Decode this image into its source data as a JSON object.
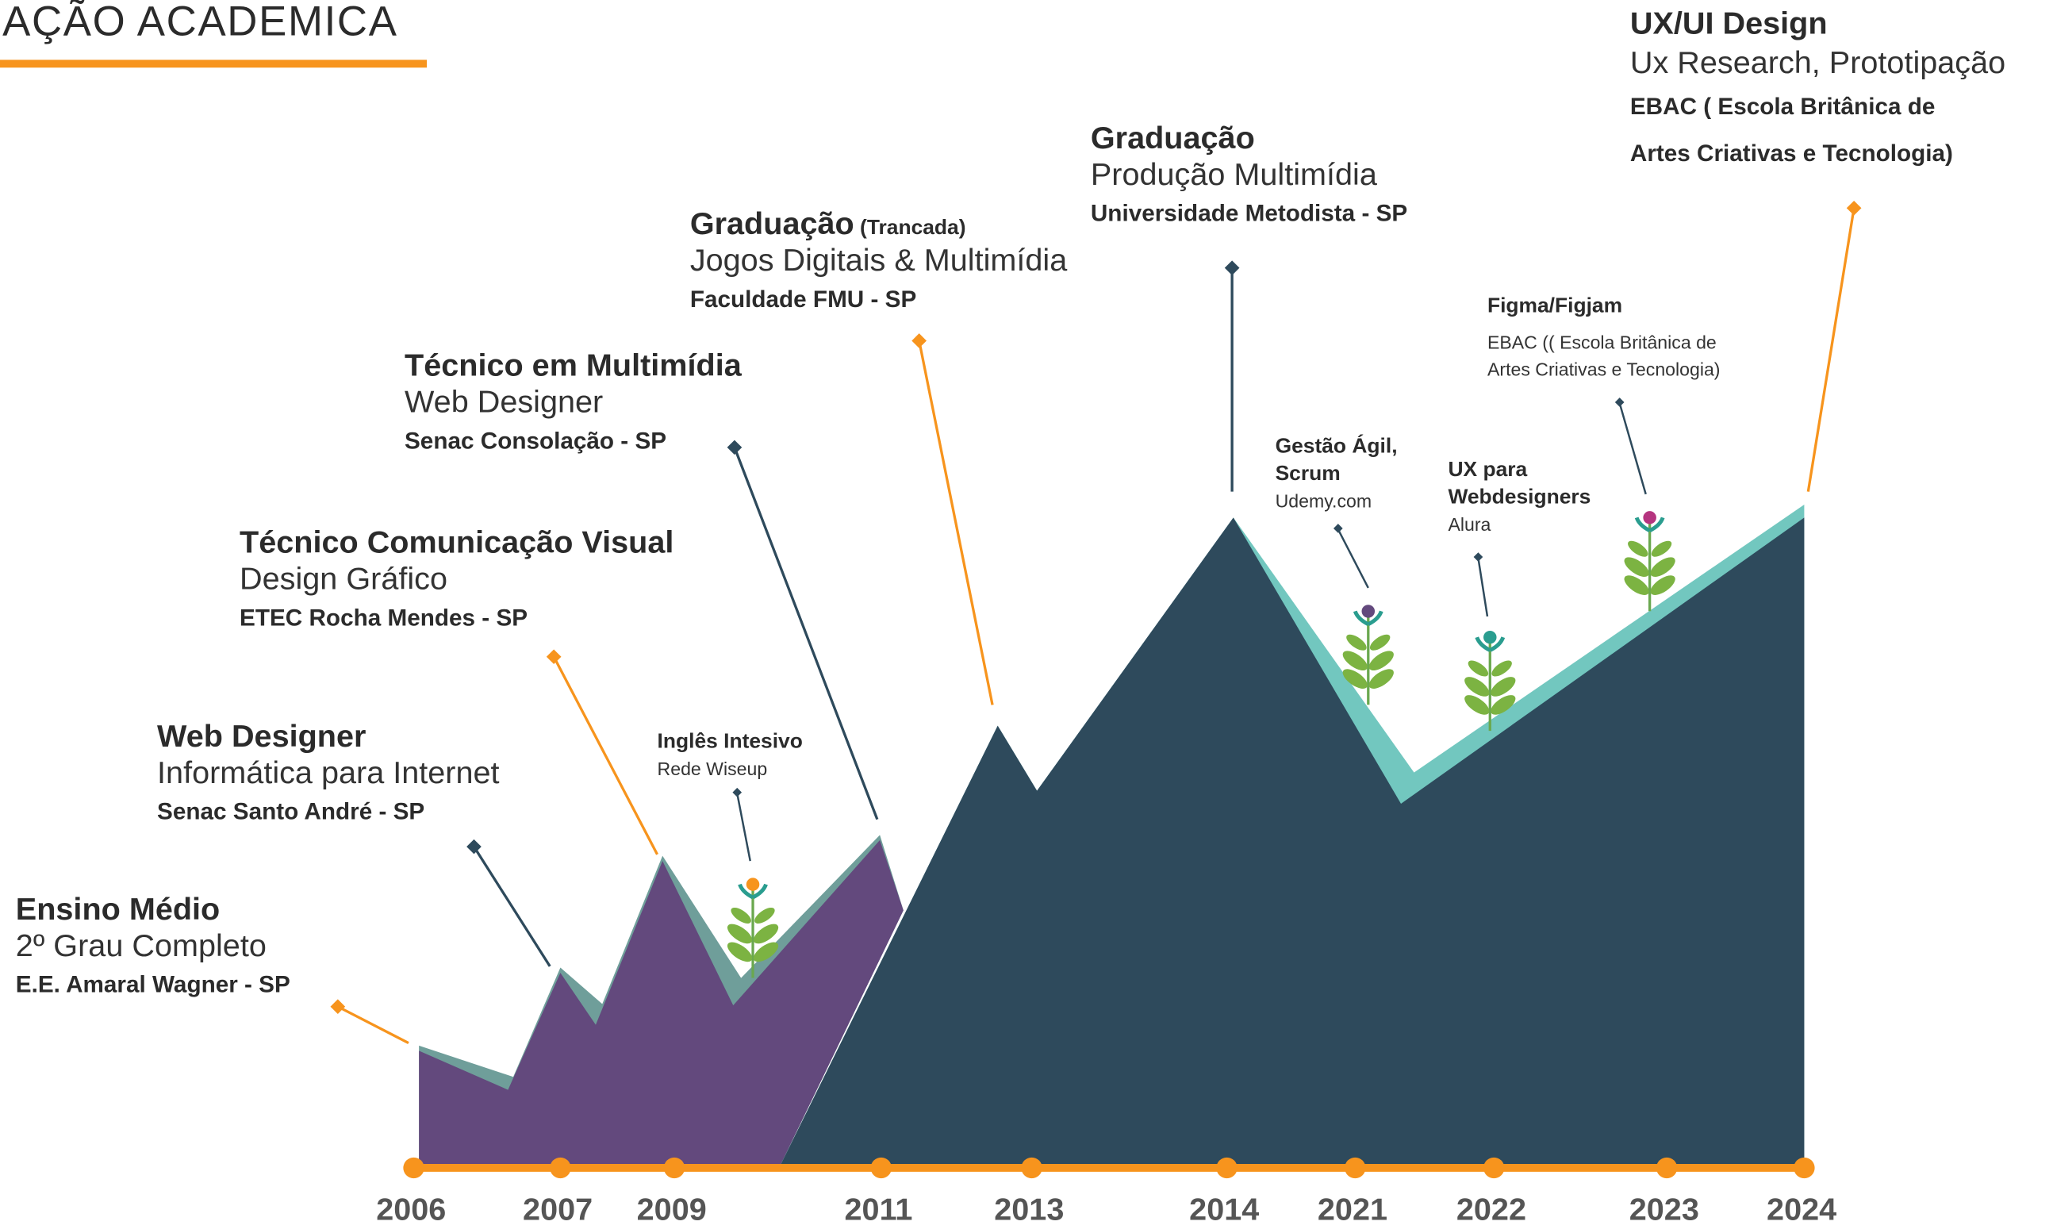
{
  "title": "IAÇÃO ACADEMICA",
  "years": [
    "2006",
    "2007",
    "2009",
    "2011",
    "2013",
    "2014",
    "2021",
    "2022",
    "2023",
    "2024"
  ],
  "entries": [
    {
      "title": "Ensino Médio",
      "subtitle": "2º Grau Completo",
      "institution": "E.E. Amaral Wagner - SP"
    },
    {
      "title": "Web Designer",
      "subtitle": "Informática para Internet",
      "institution": "Senac Santo André - SP"
    },
    {
      "title": "Técnico Comunicação Visual",
      "subtitle": "Design Gráfico",
      "institution": "ETEC Rocha Mendes - SP"
    },
    {
      "title": "Técnico em Multimídia",
      "subtitle": "Web Designer",
      "institution": "Senac Consolação - SP"
    },
    {
      "title": "Graduação",
      "note": "(Trancada)",
      "subtitle": "Jogos Digitais & Multimídia",
      "institution": "Faculdade FMU - SP"
    },
    {
      "title": "Graduação",
      "subtitle": "Produção Multimídia",
      "institution": "Universidade Metodista - SP"
    },
    {
      "title": "UX/UI Design",
      "subtitle": "Ux Research, Prototipação",
      "institution": [
        "EBAC ( Escola Britânica de",
        "Artes Criativas e Tecnologia)"
      ]
    }
  ],
  "courses": [
    {
      "title": [
        "Inglês Intesivo"
      ],
      "detail": [
        "Rede Wiseup"
      ]
    },
    {
      "title": [
        "Gestão Ágil,",
        "Scrum"
      ],
      "detail": [
        "Udemy.com"
      ]
    },
    {
      "title": [
        "UX para",
        "Webdesigners"
      ],
      "detail": [
        "Alura"
      ]
    },
    {
      "title": [
        "Figma/Figjam"
      ],
      "detail": [
        "EBAC (( Escola Britânica de",
        "Artes Criativas e Tecnologia)"
      ]
    }
  ]
}
